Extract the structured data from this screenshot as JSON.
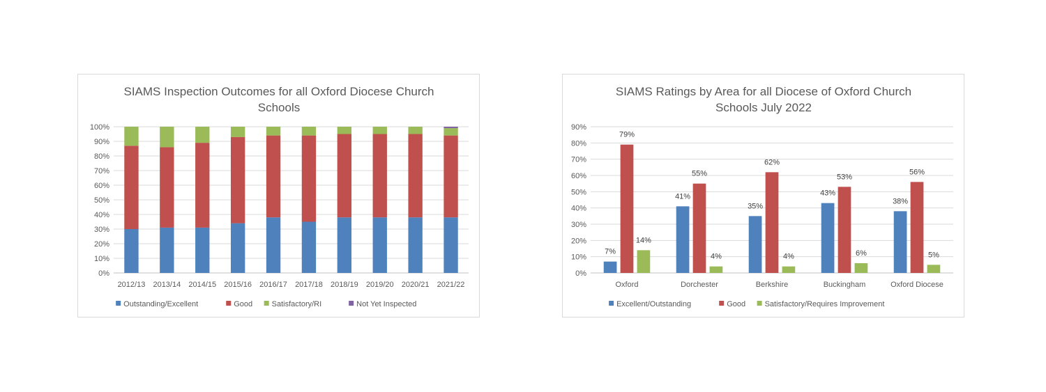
{
  "charts": [
    {
      "id": "left",
      "title_lines": [
        "SIAMS Inspection Outcomes for all Oxford Diocese Church",
        "Schools"
      ],
      "legend": [
        {
          "label": "Outstanding/Excellent",
          "color": "#4f81bd"
        },
        {
          "label": "Good",
          "color": "#c0504d"
        },
        {
          "label": "Satisfactory/RI",
          "color": "#9bbb59"
        },
        {
          "label": "Not Yet Inspected",
          "color": "#8064a2"
        }
      ]
    },
    {
      "id": "right",
      "title_lines": [
        "SIAMS Ratings by Area for all Diocese of Oxford Church",
        "Schools July 2022"
      ],
      "legend": [
        {
          "label": "Excellent/Outstanding",
          "color": "#4f81bd"
        },
        {
          "label": "Good",
          "color": "#c0504d"
        },
        {
          "label": "Satisfactory/Requires Improvement",
          "color": "#9bbb59"
        }
      ]
    }
  ],
  "chart_data": [
    {
      "type": "bar",
      "stacked": true,
      "title": "SIAMS Inspection Outcomes for all Oxford Diocese Church Schools",
      "categories": [
        "2012/13",
        "2013/14",
        "2014/15",
        "2015/16",
        "2016/17",
        "2017/18",
        "2018/19",
        "2019/20",
        "2020/21",
        "2021/22"
      ],
      "series": [
        {
          "name": "Outstanding/Excellent",
          "color": "#4f81bd",
          "values": [
            30,
            31,
            31,
            34,
            38,
            35,
            38,
            38,
            38,
            38
          ]
        },
        {
          "name": "Good",
          "color": "#c0504d",
          "values": [
            57,
            55,
            58,
            59,
            56,
            59,
            57,
            57,
            57,
            56
          ]
        },
        {
          "name": "Satisfactory/RI",
          "color": "#9bbb59",
          "values": [
            13,
            14,
            11,
            7,
            6,
            6,
            5,
            5,
            5,
            5
          ]
        },
        {
          "name": "Not Yet Inspected",
          "color": "#8064a2",
          "values": [
            0,
            0,
            0,
            0,
            0,
            0,
            0,
            0,
            0,
            1
          ]
        }
      ],
      "ylim": [
        0,
        100
      ],
      "yticks": [
        "0%",
        "10%",
        "20%",
        "30%",
        "40%",
        "50%",
        "60%",
        "70%",
        "80%",
        "90%",
        "100%"
      ],
      "grid": true,
      "legend_position": "bottom"
    },
    {
      "type": "bar",
      "stacked": false,
      "title": "SIAMS Ratings by Area for all Diocese of Oxford Church Schools July 2022",
      "categories": [
        "Oxford",
        "Dorchester",
        "Berkshire",
        "Buckingham",
        "Oxford Diocese"
      ],
      "series": [
        {
          "name": "Excellent/Outstanding",
          "color": "#4f81bd",
          "values": [
            7,
            41,
            35,
            43,
            38
          ],
          "labels": [
            "7%",
            "41%",
            "35%",
            "43%",
            "38%"
          ]
        },
        {
          "name": "Good",
          "color": "#c0504d",
          "values": [
            79,
            55,
            62,
            53,
            56
          ],
          "labels": [
            "79%",
            "55%",
            "62%",
            "53%",
            "56%"
          ]
        },
        {
          "name": "Satisfactory/Requires Improvement",
          "color": "#9bbb59",
          "values": [
            14,
            4,
            4,
            6,
            5
          ],
          "labels": [
            "14%",
            "4%",
            "4%",
            "6%",
            "5%"
          ]
        }
      ],
      "ylim": [
        0,
        90
      ],
      "yticks": [
        "0%",
        "10%",
        "20%",
        "30%",
        "40%",
        "50%",
        "60%",
        "70%",
        "80%",
        "90%"
      ],
      "grid": true,
      "legend_position": "bottom"
    }
  ]
}
